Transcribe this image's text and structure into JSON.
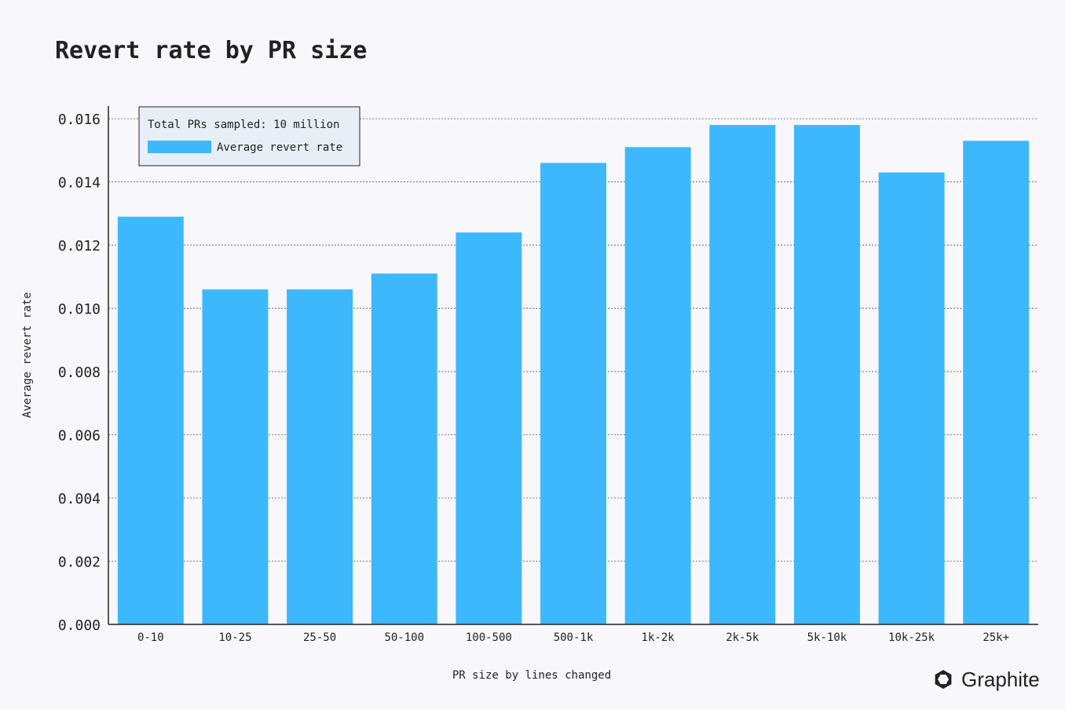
{
  "chart_data": {
    "type": "bar",
    "title": "Revert rate by PR size",
    "xlabel": "PR size by lines changed",
    "ylabel": "Average revert rate",
    "categories": [
      "0-10",
      "10-25",
      "25-50",
      "50-100",
      "100-500",
      "500-1k",
      "1k-2k",
      "2k-5k",
      "5k-10k",
      "10k-25k",
      "25k+"
    ],
    "series": [
      {
        "name": "Average revert rate",
        "color": "#3eb8fc",
        "values": [
          0.0129,
          0.0106,
          0.0106,
          0.0111,
          0.0124,
          0.0146,
          0.0151,
          0.0158,
          0.0158,
          0.0143,
          0.0153
        ]
      }
    ],
    "ylim": [
      0,
      0.0164
    ],
    "yticks": [
      "0.000",
      "0.002",
      "0.004",
      "0.006",
      "0.008",
      "0.010",
      "0.012",
      "0.014",
      "0.016"
    ],
    "grid": true,
    "legend_placement": "top-left",
    "legend_note": "Total PRs sampled: 10 million"
  },
  "brand": {
    "name": "Graphite",
    "icon": "graphite-logo-icon"
  },
  "colors": {
    "background": "#f8f8fc",
    "bar": "#3eb8fc",
    "legend_bg": "#e8eef5"
  }
}
